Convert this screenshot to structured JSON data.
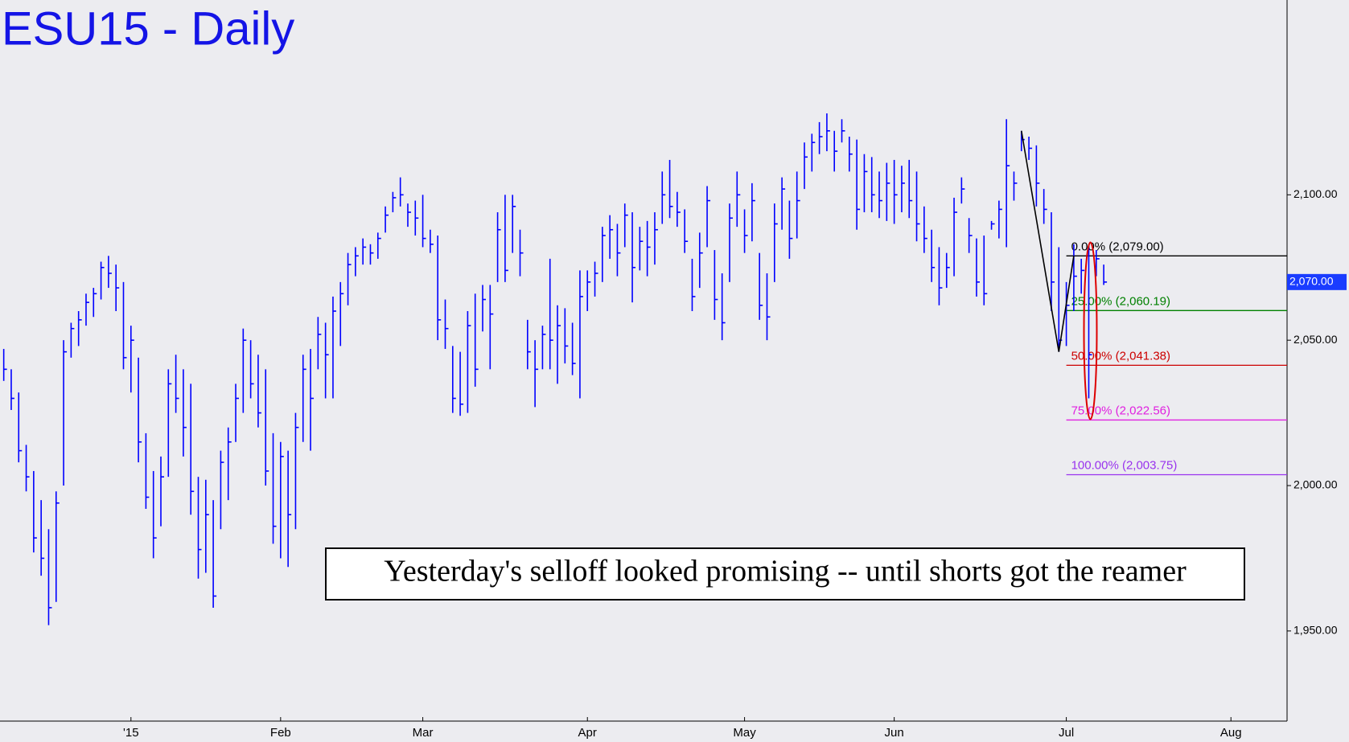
{
  "chart_data": {
    "type": "ohlc",
    "title": "ESU15 - Daily",
    "annotation": "Yesterday's selloff looked promising -- until shorts got the reamer",
    "bar_color": "#0000ff",
    "ylim": [
      1919,
      2167
    ],
    "yticks": [
      {
        "value": 1950,
        "label": "1,950.00"
      },
      {
        "value": 2000,
        "label": "2,000.00"
      },
      {
        "value": 2050,
        "label": "2,050.00"
      },
      {
        "value": 2100,
        "label": "2,100.00"
      }
    ],
    "last_price": {
      "value": 2070,
      "label": "2,070.00"
    },
    "fib_levels": [
      {
        "value": 2079,
        "label": "0.00% (2,079.00)",
        "color": "#000000"
      },
      {
        "value": 2060.19,
        "label": "25.00% (2,060.19)",
        "color": "#008000"
      },
      {
        "value": 2041.38,
        "label": "50.00% (2,041.38)",
        "color": "#cc0000"
      },
      {
        "value": 2022.56,
        "label": "75.00% (2,022.56)",
        "color": "#e020e0"
      },
      {
        "value": 2003.75,
        "label": "100.00% (2,003.75)",
        "color": "#9933ee"
      }
    ],
    "categories": [
      null,
      null,
      null,
      null,
      null,
      null,
      null,
      null,
      null,
      null,
      null,
      null,
      null,
      null,
      null,
      null,
      null,
      "'15",
      null,
      null,
      null,
      null,
      null,
      null,
      null,
      null,
      null,
      null,
      null,
      null,
      null,
      null,
      null,
      null,
      null,
      null,
      null,
      "Feb",
      null,
      null,
      null,
      null,
      null,
      null,
      null,
      null,
      null,
      null,
      null,
      null,
      null,
      null,
      null,
      null,
      null,
      null,
      "Mar",
      null,
      null,
      null,
      null,
      null,
      null,
      null,
      null,
      null,
      null,
      null,
      null,
      null,
      null,
      null,
      null,
      null,
      null,
      null,
      null,
      null,
      "Apr",
      null,
      null,
      null,
      null,
      null,
      null,
      null,
      null,
      null,
      null,
      null,
      null,
      null,
      null,
      null,
      null,
      null,
      null,
      null,
      null,
      "May",
      null,
      null,
      null,
      null,
      null,
      null,
      null,
      null,
      null,
      null,
      null,
      null,
      null,
      null,
      null,
      null,
      null,
      null,
      null,
      "Jun",
      null,
      null,
      null,
      null,
      null,
      null,
      null,
      null,
      null,
      null,
      null,
      null,
      null,
      null,
      null,
      null,
      null,
      null,
      null,
      null,
      null,
      null,
      "Jul",
      null,
      null,
      null,
      null,
      null,
      null,
      null,
      null,
      null,
      null,
      null,
      null,
      null,
      null,
      null,
      null,
      null,
      null,
      null,
      null,
      null,
      "Aug",
      null,
      null,
      null,
      null,
      null,
      null,
      null
    ],
    "high": [
      2047,
      2040,
      2032,
      2014,
      2005,
      1995,
      1985,
      1998,
      2050,
      2056,
      2060,
      2066,
      2068,
      2077,
      2079,
      2076,
      2070,
      2055,
      2044,
      2018,
      2005,
      2010,
      2040,
      2045,
      2040,
      2035,
      2003,
      2002,
      1995,
      2012,
      2020,
      2035,
      2054,
      2050,
      2045,
      2040,
      2018,
      2015,
      2012,
      2025,
      2045,
      2047,
      2058,
      2056,
      2065,
      2070,
      2080,
      2082,
      2085,
      2083,
      2087,
      2096,
      2101,
      2106,
      2097,
      2098,
      2100,
      2088,
      2086,
      2064,
      2048,
      2046,
      2060,
      2066,
      2069,
      2069,
      2094,
      2100,
      2100,
      2088,
      2057,
      2050,
      2055,
      2078,
      2062,
      2061,
      2056,
      2074,
      2074,
      2077,
      2089,
      2093,
      2090,
      2097,
      2094,
      2089,
      2091,
      2094,
      2108,
      2112,
      2101,
      2095,
      2078,
      2087,
      2103,
      2081,
      2073,
      2097,
      2108,
      2095,
      2104,
      2080,
      2073,
      2097,
      2106,
      2098,
      2108,
      2118,
      2121,
      2125,
      2128,
      2122,
      2126,
      2120,
      2119,
      2114,
      2113,
      2108,
      2111,
      2112,
      2110,
      2112,
      2108,
      2096,
      2088,
      2082,
      2080,
      2099,
      2106,
      2092,
      2085,
      2086,
      2091,
      2098,
      2126,
      2108,
      2122,
      2120,
      2117,
      2102,
      2094,
      2082,
      2070,
      2083,
      2078,
      2082,
      2081,
      2076,
      null,
      null,
      null,
      null,
      null,
      null,
      null,
      null,
      null,
      null,
      null,
      null,
      null,
      null,
      null,
      null,
      null,
      null,
      null,
      null,
      null,
      null,
      null,
      null
    ],
    "low": [
      2036,
      2026,
      2008,
      1998,
      1977,
      1969,
      1952,
      1960,
      2000,
      2044,
      2048,
      2055,
      2058,
      2064,
      2068,
      2060,
      2040,
      2032,
      2008,
      1992,
      1975,
      1986,
      2003,
      2025,
      2010,
      1990,
      1968,
      1970,
      1958,
      1985,
      1995,
      2015,
      2025,
      2030,
      2020,
      2000,
      1980,
      1975,
      1972,
      1985,
      2015,
      2012,
      2040,
      2030,
      2030,
      2048,
      2062,
      2072,
      2076,
      2076,
      2078,
      2087,
      2094,
      2096,
      2089,
      2086,
      2082,
      2080,
      2050,
      2047,
      2025,
      2024,
      2025,
      2034,
      2053,
      2040,
      2070,
      2070,
      2080,
      2072,
      2040,
      2027,
      2040,
      2040,
      2035,
      2042,
      2038,
      2030,
      2060,
      2065,
      2070,
      2078,
      2072,
      2082,
      2063,
      2074,
      2072,
      2076,
      2090,
      2092,
      2089,
      2080,
      2060,
      2068,
      2082,
      2057,
      2050,
      2070,
      2089,
      2080,
      2084,
      2057,
      2050,
      2070,
      2088,
      2078,
      2085,
      2102,
      2108,
      2114,
      2115,
      2108,
      2118,
      2108,
      2088,
      2094,
      2094,
      2092,
      2091,
      2090,
      2094,
      2092,
      2084,
      2080,
      2070,
      2062,
      2068,
      2072,
      2097,
      2080,
      2065,
      2062,
      2088,
      2085,
      2082,
      2098,
      2115,
      2112,
      2096,
      2090,
      2060,
      2046,
      2048,
      2060,
      2066,
      2030,
      2072,
      2069,
      null,
      null,
      null,
      null,
      null,
      null,
      null,
      null,
      null,
      null,
      null,
      null,
      null,
      null,
      null,
      null,
      null,
      null,
      null,
      null,
      null,
      null,
      null,
      null
    ],
    "close": [
      2040,
      2030,
      2012,
      2003,
      1982,
      1975,
      1958,
      1994,
      2046,
      2054,
      2057,
      2063,
      2066,
      2075,
      2073,
      2068,
      2044,
      2050,
      2015,
      1996,
      1982,
      2003,
      2035,
      2030,
      2020,
      1998,
      1978,
      1990,
      1962,
      2008,
      2015,
      2030,
      2050,
      2035,
      2025,
      2005,
      1986,
      2010,
      1990,
      2020,
      2040,
      2030,
      2052,
      2045,
      2060,
      2066,
      2076,
      2079,
      2082,
      2080,
      2085,
      2093,
      2099,
      2100,
      2094,
      2092,
      2085,
      2083,
      2057,
      2054,
      2030,
      2028,
      2055,
      2040,
      2064,
      2059,
      2088,
      2074,
      2096,
      2080,
      2046,
      2040,
      2052,
      2050,
      2055,
      2048,
      2042,
      2065,
      2070,
      2073,
      2086,
      2088,
      2080,
      2093,
      2075,
      2084,
      2082,
      2088,
      2100,
      2096,
      2094,
      2084,
      2065,
      2080,
      2098,
      2064,
      2056,
      2092,
      2100,
      2086,
      2098,
      2062,
      2058,
      2090,
      2102,
      2085,
      2098,
      2113,
      2118,
      2120,
      2122,
      2115,
      2122,
      2114,
      2095,
      2108,
      2100,
      2098,
      2104,
      2100,
      2104,
      2098,
      2090,
      2085,
      2075,
      2068,
      2075,
      2094,
      2102,
      2086,
      2070,
      2066,
      2090,
      2095,
      2110,
      2104,
      2119,
      2116,
      2104,
      2095,
      2070,
      2050,
      2062,
      2072,
      2074,
      2045,
      2078,
      2070,
      null,
      null,
      null,
      null,
      null,
      null,
      null,
      null,
      null,
      null,
      null,
      null,
      null,
      null,
      null,
      null,
      null,
      null,
      null,
      null,
      null,
      null,
      null,
      null
    ]
  }
}
